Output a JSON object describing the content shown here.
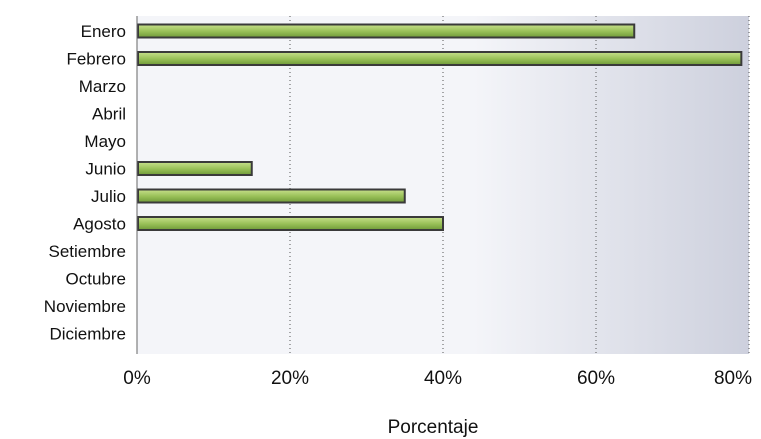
{
  "chart_data": {
    "type": "bar",
    "orientation": "horizontal",
    "categories": [
      "Enero",
      "Febrero",
      "Marzo",
      "Abril",
      "Mayo",
      "Junio",
      "Julio",
      "Agosto",
      "Setiembre",
      "Octubre",
      "Noviembre",
      "Diciembre"
    ],
    "values": [
      65,
      79,
      0,
      0,
      0,
      15,
      35,
      40,
      0,
      0,
      0,
      0
    ],
    "xlabel": "Porcentaje",
    "ylabel": "",
    "title": "",
    "xlim": [
      0,
      80
    ],
    "xticks": [
      "0%",
      "20%",
      "40%",
      "60%",
      "80%"
    ],
    "grid": "vertical dotted",
    "legend": "none",
    "colors": {
      "bar_fill": "#9bc25a",
      "bar_stroke": "#3a3a3a",
      "plot_bg_light": "#f4f5f9",
      "plot_bg_dark": "#cdd0dd",
      "gridline": "#555555"
    }
  }
}
